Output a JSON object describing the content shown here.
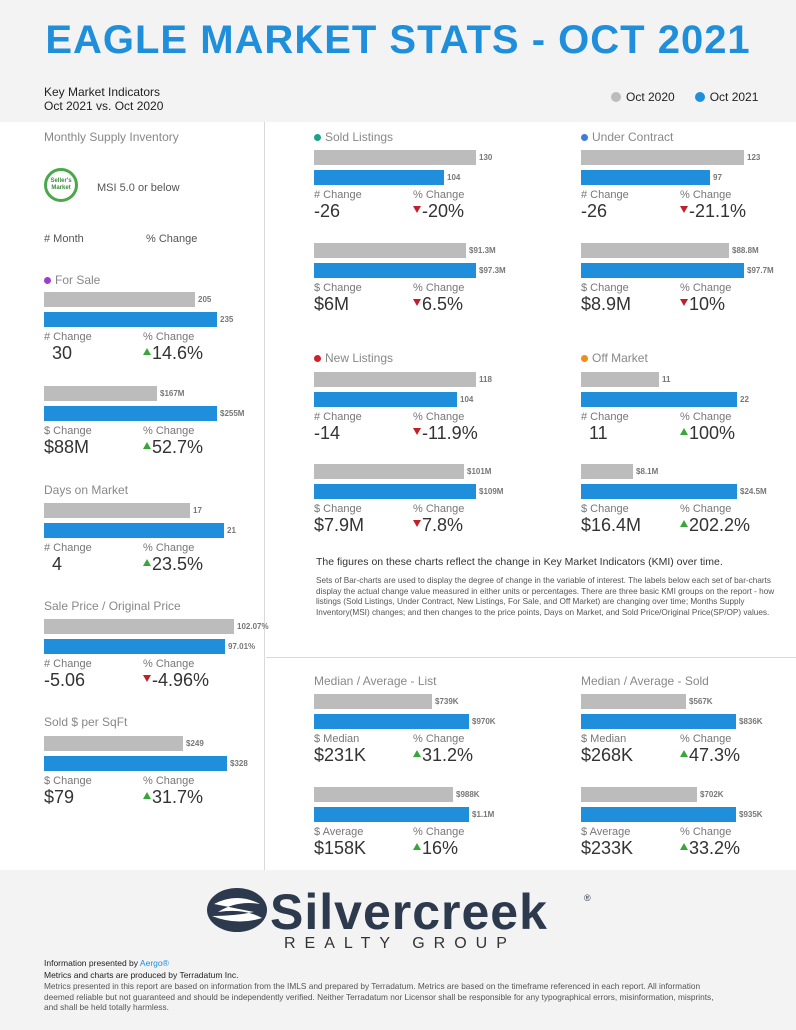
{
  "header": {
    "title": "EAGLE MARKET STATS - OCT 2021",
    "kmi_line1": "Key Market Indicators",
    "kmi_line2": "Oct 2021 vs. Oct 2020"
  },
  "legend": {
    "prev": "Oct 2020",
    "curr": "Oct 2021",
    "prev_color": "#bcbcbc",
    "curr_color": "#1f8fdc"
  },
  "left": {
    "msi_title": "Monthly Supply Inventory",
    "badge_text": "Seller's Market",
    "msi_text": "MSI 5.0 or below",
    "hdr_month": "# Month",
    "hdr_pct": "% Change",
    "for_sale": {
      "title": "For Sale",
      "dot_color": "#9b3fd1",
      "units": {
        "prev": "205",
        "curr": "235",
        "prev_value": 205,
        "curr_value": 235,
        "cap1": "# Change",
        "val1": "30",
        "cap2": "% Change",
        "val2": "14.6%",
        "dir": "up"
      },
      "dollars": {
        "prev": "$167M",
        "curr": "$255M",
        "prev_value": 167,
        "curr_value": 255,
        "cap1": "$ Change",
        "val1": "$88M",
        "cap2": "% Change",
        "val2": "52.7%",
        "dir": "up"
      }
    },
    "dom": {
      "title": "Days on Market",
      "prev": "17",
      "curr": "21",
      "prev_value": 17,
      "curr_value": 21,
      "cap1": "# Change",
      "val1": "4",
      "cap2": "% Change",
      "val2": "23.5%",
      "dir": "up"
    },
    "sp_op": {
      "title": "Sale Price / Original Price",
      "prev": "102.07%",
      "curr": "97.01%",
      "prev_value": 102.07,
      "curr_value": 97.01,
      "cap1": "# Change",
      "val1": "-5.06",
      "cap2": "% Change",
      "val2": "-4.96%",
      "dir": "down"
    },
    "sqft": {
      "title": "Sold $ per SqFt",
      "prev": "$249",
      "curr": "$328",
      "prev_value": 249,
      "curr_value": 328,
      "cap1": "$ Change",
      "val1": "$79",
      "cap2": "% Change",
      "val2": "31.7%",
      "dir": "up"
    }
  },
  "sold": {
    "title": "Sold Listings",
    "dot_color": "#1aa38a",
    "units": {
      "prev": "130",
      "curr": "104",
      "prev_value": 130,
      "curr_value": 104,
      "cap1": "# Change",
      "val1": "-26",
      "cap2": "% Change",
      "val2": "-20%",
      "dir": "down"
    },
    "dollars": {
      "prev": "$91.3M",
      "curr": "$97.3M",
      "prev_value": 91.3,
      "curr_value": 97.3,
      "cap1": "$ Change",
      "val1": "$6M",
      "cap2": "% Change",
      "val2": "6.5%",
      "dir": "down"
    }
  },
  "under_contract": {
    "title": "Under Contract",
    "dot_color": "#3b7ddd",
    "units": {
      "prev": "123",
      "curr": "97",
      "prev_value": 123,
      "curr_value": 97,
      "cap1": "# Change",
      "val1": "-26",
      "cap2": "% Change",
      "val2": "-21.1%",
      "dir": "down"
    },
    "dollars": {
      "prev": "$88.8M",
      "curr": "$97.7M",
      "prev_value": 88.8,
      "curr_value": 97.7,
      "cap1": "$ Change",
      "val1": "$8.9M",
      "cap2": "% Change",
      "val2": "10%",
      "dir": "down"
    }
  },
  "new_listings": {
    "title": "New Listings",
    "dot_color": "#d11f2c",
    "units": {
      "prev": "118",
      "curr": "104",
      "prev_value": 118,
      "curr_value": 104,
      "cap1": "# Change",
      "val1": "-14",
      "cap2": "% Change",
      "val2": "-11.9%",
      "dir": "down"
    },
    "dollars": {
      "prev": "$101M",
      "curr": "$109M",
      "prev_value": 101,
      "curr_value": 109,
      "cap1": "$ Change",
      "val1": "$7.9M",
      "cap2": "% Change",
      "val2": "7.8%",
      "dir": "down"
    }
  },
  "off_market": {
    "title": "Off Market",
    "dot_color": "#f08c1a",
    "units": {
      "prev": "11",
      "curr": "22",
      "prev_value": 11,
      "curr_value": 22,
      "cap1": "# Change",
      "val1": "11",
      "cap2": "% Change",
      "val2": "100%",
      "dir": "up"
    },
    "dollars": {
      "prev": "$8.1M",
      "curr": "$24.5M",
      "prev_value": 8.1,
      "curr_value": 24.5,
      "cap1": "$ Change",
      "val1": "$16.4M",
      "cap2": "% Change",
      "val2": "202.2%",
      "dir": "up"
    }
  },
  "description": {
    "title": "The figures on these charts reflect the change in Key Market Indicators (KMI) over time.",
    "body": "Sets of Bar-charts are used to display the degree of change in the variable of interest. The labels below each set of bar-charts display the actual change value measured in either units or percentages. There are three basic KMI groups on the report - how listings (Sold Listings, Under Contract, New Listings, For Sale, and Off Market) are changing over time; Months Supply Inventory(MSI) changes; and then changes to the price points, Days on Market, and Sold Price/Original Price(SP/OP) values."
  },
  "median_list": {
    "title": "Median / Average - List",
    "median": {
      "prev": "$739K",
      "curr": "$970K",
      "prev_value": 739,
      "curr_value": 970,
      "cap1": "$ Median",
      "val1": "$231K",
      "cap2": "% Change",
      "val2": "31.2%",
      "dir": "up"
    },
    "average": {
      "prev": "$988K",
      "curr": "$1.1M",
      "prev_value": 988,
      "curr_value": 1100,
      "cap1": "$ Average",
      "val1": "$158K",
      "cap2": "% Change",
      "val2": "16%",
      "dir": "up"
    }
  },
  "median_sold": {
    "title": "Median / Average - Sold",
    "median": {
      "prev": "$567K",
      "curr": "$836K",
      "prev_value": 567,
      "curr_value": 836,
      "cap1": "$ Median",
      "val1": "$268K",
      "cap2": "% Change",
      "val2": "47.3%",
      "dir": "up"
    },
    "average": {
      "prev": "$702K",
      "curr": "$935K",
      "prev_value": 702,
      "curr_value": 935,
      "cap1": "$ Average",
      "val1": "$233K",
      "cap2": "% Change",
      "val2": "33.2%",
      "dir": "up"
    }
  },
  "footer": {
    "logo_word": "Silvercreek",
    "logo_sub": "REALTY GROUP",
    "presented_prefix": "Information presented by ",
    "presented_link": "Aergo®",
    "produced": "Metrics and charts are produced by Terradatum Inc.",
    "disclaimer": "Metrics presented in this report are based on information from the IMLS and prepared by Terradatum. Metrics are based on the timeframe referenced in each report. All information deemed reliable but not guaranteed and should be independently verified. Neither Terradatum nor Licensor shall be responsible for any typographical errors, misinformation, misprints, and shall be held totally harmless."
  }
}
